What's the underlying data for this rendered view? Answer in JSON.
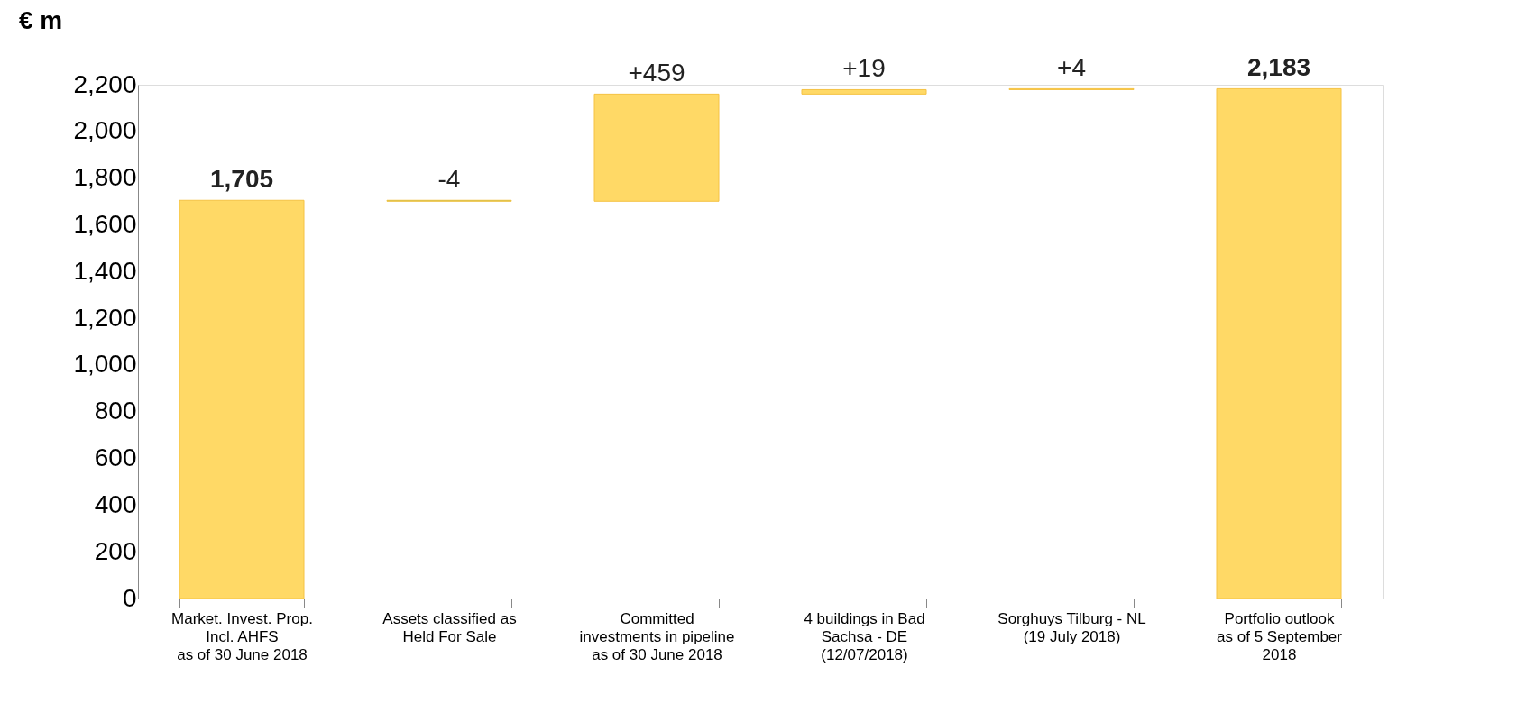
{
  "chart_data": {
    "type": "bar",
    "ylabel": "€ m",
    "categories": [
      "Market. Invest. Prop.\nIncl. AHFS\nas of 30 June 2018",
      "Assets classified as\nHeld For Sale",
      "Committed\ninvestments in pipeline\nas of 30 June 2018",
      "4 buildings in Bad\nSachsa - DE\n(12/07/2018)",
      "Sorghuys Tilburg - NL\n(19 July 2018)",
      "Portfolio outlook\nas of 5 September\n2018"
    ],
    "values": [
      1705,
      -4,
      459,
      19,
      4,
      2183
    ],
    "base": [
      0,
      1705,
      1701,
      2160,
      2179,
      0
    ],
    "colors": [
      "#ffd966",
      "#70ad47",
      "#ffd966",
      "#ffd966",
      "#ffd966",
      "#ffd966"
    ],
    "value_labels": [
      "1,705",
      "-4",
      "+459",
      "+19",
      "+4",
      "2,183"
    ],
    "ylim": [
      0,
      2200
    ],
    "yticks": [
      0,
      200,
      400,
      600,
      800,
      {
        "value": 1000,
        "label": "1,000"
      },
      {
        "value": 1200,
        "label": "1,200"
      },
      {
        "value": 1400,
        "label": "1,400"
      },
      {
        "value": 1600,
        "label": "1,600"
      },
      {
        "value": 1800,
        "label": "1,800"
      },
      {
        "value": 2000,
        "label": "2,000"
      },
      {
        "value": 2200,
        "label": "2,200"
      }
    ],
    "grid": false
  }
}
